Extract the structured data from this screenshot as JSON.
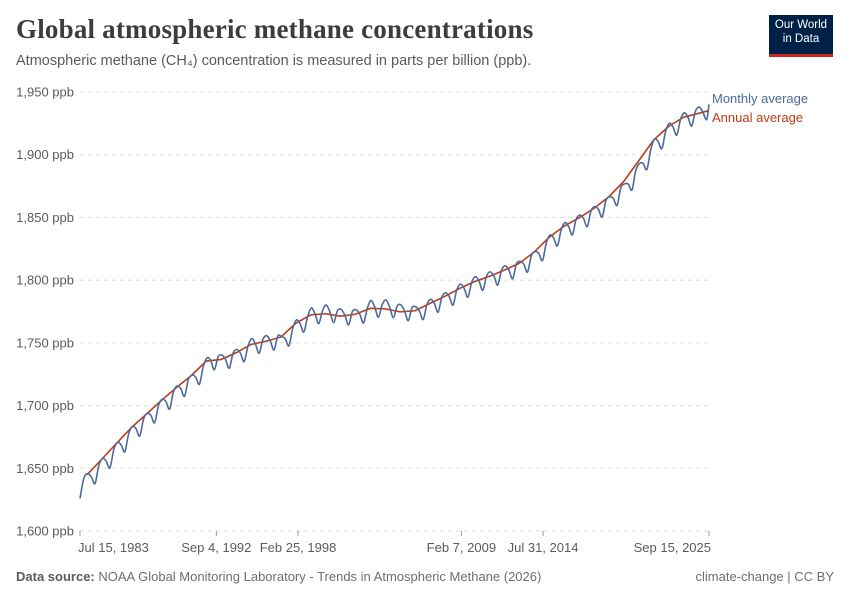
{
  "title": "Global atmospheric methane concentrations",
  "subtitle": "Atmospheric methane (CH₄) concentration is measured in parts per billion (ppb).",
  "logo": {
    "line1": "Our World",
    "line2": "in Data"
  },
  "footer": {
    "source_label": "Data source:",
    "source_text": "NOAA Global Monitoring Laboratory - Trends in Atmospheric Methane (2026)",
    "license": "climate-change | CC BY"
  },
  "chart_data": {
    "type": "line",
    "title": "Global atmospheric methane concentrations",
    "xlabel": "",
    "ylabel": "",
    "ylim": [
      1600,
      1950
    ],
    "xlim": [
      "1983-07-15",
      "2025-09-15"
    ],
    "grid": "horizontal dashed",
    "legend": "right (end-of-line labels)",
    "y_ticks": [
      1600,
      1650,
      1700,
      1750,
      1800,
      1850,
      1900,
      1950
    ],
    "y_tick_labels": [
      "1,600 ppb",
      "1,650 ppb",
      "1,700 ppb",
      "1,750 ppb",
      "1,800 ppb",
      "1,850 ppb",
      "1,900 ppb",
      "1,950 ppb"
    ],
    "x_ticks": [
      "1983-07-15",
      "1992-09-04",
      "1998-02-25",
      "2009-02-07",
      "2014-07-31",
      "2025-09-15"
    ],
    "x_tick_labels": [
      "Jul 15, 1983",
      "Sep 4, 1992",
      "Feb 25, 1998",
      "Feb 7, 2009",
      "Jul 31, 2014",
      "Sep 15, 2025"
    ],
    "series": [
      {
        "name": "Monthly average",
        "color": "#4c6a9c",
        "start_year": 1983,
        "months": [
          7,
          10
        ],
        "note_quarterly_months": [
          1,
          4,
          7,
          10
        ],
        "values": [
          1626.0,
          1642.0,
          1645.6,
          1643.3,
          1637.8,
          1652.0,
          1657.9,
          1655.7,
          1650.3,
          1664.6,
          1670.8,
          1668.6,
          1663.1,
          1677.3,
          1683.4,
          1681.6,
          1675.7,
          1689.2,
          1693.8,
          1692.1,
          1686.3,
          1699.9,
          1705.1,
          1703.2,
          1697.2,
          1710.6,
          1715.6,
          1713.5,
          1707.4,
          1720.6,
          1724.3,
          1722.7,
          1717.0,
          1730.8,
          1737.9,
          1736.2,
          1728.5,
          1738.9,
          1740.2,
          1736.7,
          1729.8,
          1741.6,
          1744.8,
          1741.8,
          1735.1,
          1747.3,
          1753.4,
          1749.2,
          1741.7,
          1752.6,
          1755.7,
          1751.6,
          1744.3,
          1755.4,
          1755.1,
          1753.4,
          1747.6,
          1761.3,
          1768.2,
          1765.3,
          1758.6,
          1770.8,
          1777.8,
          1773.1,
          1765.3,
          1775.6,
          1780.2,
          1774.6,
          1766.2,
          1775.6,
          1776.6,
          1772.0,
          1764.3,
          1774.8,
          1776.4,
          1772.9,
          1765.8,
          1777.4,
          1783.7,
          1778.6,
          1770.5,
          1780.4,
          1784.3,
          1778.6,
          1770.1,
          1779.3,
          1780.3,
          1775.5,
          1767.7,
          1778.0,
          1778.7,
          1775.4,
          1768.6,
          1780.6,
          1784.7,
          1781.4,
          1774.5,
          1786.4,
          1789.9,
          1786.8,
          1780.1,
          1792.2,
          1796.8,
          1793.4,
          1786.5,
          1798.3,
          1802.8,
          1799.1,
          1791.9,
          1803.3,
          1806.6,
          1803.1,
          1796.1,
          1807.8,
          1811.4,
          1808.0,
          1801.1,
          1812.9,
          1815.0,
          1812.7,
          1806.5,
          1819.5,
          1822.8,
          1821.3,
          1815.6,
          1829.5,
          1836.0,
          1833.5,
          1827.3,
          1840.2,
          1845.8,
          1842.8,
          1836.1,
          1848.3,
          1851.9,
          1849.2,
          1842.7,
          1855.2,
          1858.6,
          1856.4,
          1850.3,
          1863.4,
          1866.5,
          1865.1,
          1859.6,
          1873.7,
          1876.7,
          1876.6,
          1871.9,
          1887.4,
          1893.0,
          1893.0,
          1888.3,
          1903.8,
          1912.4,
          1910.6,
          1904.8,
          1918.4,
          1925.0,
          1922.1,
          1915.6,
          1928.0,
          1933.4,
          1929.9,
          1922.9,
          1934.6,
          1938.0,
          1934.0,
          1928.0,
          1940.0
        ]
      },
      {
        "name": "Annual average",
        "color": "#be3b14",
        "years": [
          1984,
          1985,
          1986,
          1987,
          1988,
          1989,
          1990,
          1991,
          1992,
          1993,
          1994,
          1995,
          1996,
          1997,
          1998,
          1999,
          2000,
          2001,
          2002,
          2003,
          2004,
          2005,
          2006,
          2007,
          2008,
          2009,
          2010,
          2011,
          2012,
          2013,
          2014,
          2015,
          2016,
          2017,
          2018,
          2019,
          2020,
          2021,
          2022,
          2023,
          2024,
          2025
        ],
        "values": [
          1644.8,
          1657.3,
          1670.1,
          1682.7,
          1693.3,
          1704.2,
          1714.4,
          1724.0,
          1735.5,
          1736.8,
          1742.1,
          1748.7,
          1751.3,
          1754.6,
          1765.6,
          1772.3,
          1773.2,
          1771.3,
          1772.8,
          1777.5,
          1777.1,
          1774.7,
          1775.6,
          1781.5,
          1787.1,
          1793.5,
          1798.9,
          1803.1,
          1808.1,
          1813.5,
          1822.6,
          1834.3,
          1843.1,
          1849.7,
          1857.3,
          1866.6,
          1878.9,
          1895.3,
          1911.8,
          1922.6,
          1929.9,
          1935.0
        ]
      }
    ]
  }
}
